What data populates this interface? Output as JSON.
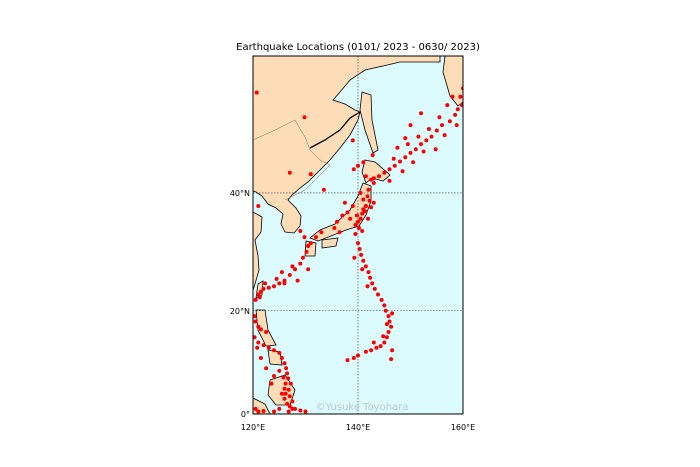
{
  "chart_data": {
    "type": "scatter",
    "title": "Earthquake Locations (0101/ 2023 - 0630/ 2023)",
    "projection": "mercator",
    "xlim": [
      120,
      160
    ],
    "ylim": [
      0,
      57
    ],
    "x_ticks": [
      120,
      140,
      160
    ],
    "x_tick_labels": [
      "120°E",
      "140°E",
      "160°E"
    ],
    "y_ticks": [
      0,
      20,
      40
    ],
    "y_tick_labels": [
      "0°",
      "20°N",
      "40°N"
    ],
    "grid": true,
    "watermark": "©Yusuke Toyohara",
    "colors": {
      "land": "#fddcb8",
      "ocean": "#dcfbff",
      "points": "#ff0000",
      "grid": "#333333"
    },
    "points_lonlat": [
      [
        159.5,
        53
      ],
      [
        159.8,
        52
      ],
      [
        159,
        51.5
      ],
      [
        158.5,
        50.8
      ],
      [
        157.5,
        50
      ],
      [
        156,
        49.5
      ],
      [
        155,
        48.8
      ],
      [
        154,
        48
      ],
      [
        153,
        47.5
      ],
      [
        152,
        47
      ],
      [
        151,
        46.3
      ],
      [
        150,
        45.8
      ],
      [
        149,
        45.2
      ],
      [
        148,
        44.6
      ],
      [
        147,
        44
      ],
      [
        146,
        43.5
      ],
      [
        145,
        43
      ],
      [
        144,
        42.5
      ],
      [
        143,
        42.2
      ],
      [
        155.5,
        50.5
      ],
      [
        153.5,
        49
      ],
      [
        151.5,
        48
      ],
      [
        149.5,
        47
      ],
      [
        147.5,
        46.5
      ],
      [
        146.8,
        45
      ],
      [
        152.5,
        46
      ],
      [
        157,
        52
      ],
      [
        158,
        53
      ],
      [
        160,
        54
      ],
      [
        150.5,
        44.5
      ],
      [
        148.5,
        43.2
      ],
      [
        146,
        41.8
      ],
      [
        154.8,
        46.3
      ],
      [
        156.5,
        48.2
      ],
      [
        158.8,
        49.5
      ],
      [
        152,
        51
      ],
      [
        150,
        49.5
      ],
      [
        149,
        47.8
      ],
      [
        141.5,
        42.5
      ],
      [
        142.5,
        42
      ],
      [
        143,
        41.5
      ],
      [
        142,
        40.5
      ],
      [
        141.8,
        39.5
      ],
      [
        142.2,
        38.8
      ],
      [
        141.5,
        38
      ],
      [
        141,
        37.5
      ],
      [
        140.8,
        36.8
      ],
      [
        140.5,
        36
      ],
      [
        140,
        35.5
      ],
      [
        139.5,
        35
      ],
      [
        140.2,
        34.5
      ],
      [
        141.3,
        37.2
      ],
      [
        142.5,
        37.8
      ],
      [
        143,
        38.5
      ],
      [
        141,
        39
      ],
      [
        140.5,
        40
      ],
      [
        139,
        38
      ],
      [
        138,
        37
      ],
      [
        137,
        36.5
      ],
      [
        136,
        35.5
      ],
      [
        135.5,
        34.5
      ],
      [
        133,
        33.8
      ],
      [
        132,
        33
      ],
      [
        131,
        32
      ],
      [
        130.5,
        31.5
      ],
      [
        138.5,
        36
      ],
      [
        139.8,
        36.5
      ],
      [
        141.9,
        36
      ],
      [
        140.8,
        34
      ],
      [
        139.5,
        33.5
      ],
      [
        136.5,
        33.8
      ],
      [
        129.8,
        33
      ],
      [
        130.2,
        30.5
      ],
      [
        139.2,
        43.5
      ],
      [
        141,
        44.5
      ],
      [
        142.8,
        45.5
      ],
      [
        140,
        32
      ],
      [
        140.3,
        31
      ],
      [
        140.6,
        30
      ],
      [
        141,
        29
      ],
      [
        141.5,
        28
      ],
      [
        142,
        27
      ],
      [
        142.3,
        26
      ],
      [
        142.7,
        25
      ],
      [
        143.2,
        24
      ],
      [
        143.8,
        23
      ],
      [
        144.5,
        22
      ],
      [
        145,
        21
      ],
      [
        145.3,
        20
      ],
      [
        145.8,
        19
      ],
      [
        146,
        18
      ],
      [
        146.3,
        17
      ],
      [
        145.8,
        16
      ],
      [
        145.5,
        15
      ],
      [
        145,
        14
      ],
      [
        144.3,
        13.3
      ],
      [
        143.5,
        13
      ],
      [
        142.5,
        12.5
      ],
      [
        141.5,
        12.2
      ],
      [
        140,
        11.5
      ],
      [
        146.5,
        12.5
      ],
      [
        146.3,
        10.8
      ],
      [
        138,
        10.6
      ],
      [
        139.2,
        11
      ],
      [
        145.5,
        17.5
      ],
      [
        146.5,
        19.5
      ],
      [
        144.8,
        15.2
      ],
      [
        143,
        14
      ],
      [
        140.8,
        27.5
      ],
      [
        139.3,
        29.5
      ],
      [
        141.8,
        24.5
      ],
      [
        129.5,
        29.5
      ],
      [
        129,
        28.5
      ],
      [
        128,
        27.5
      ],
      [
        127,
        26.5
      ],
      [
        126,
        25.5
      ],
      [
        125,
        25
      ],
      [
        124,
        24.5
      ],
      [
        123,
        24.2
      ],
      [
        122,
        24
      ],
      [
        121.5,
        23.5
      ],
      [
        121,
        23
      ],
      [
        121.3,
        22.5
      ],
      [
        120.5,
        22
      ],
      [
        125.5,
        27
      ],
      [
        127.5,
        28
      ],
      [
        122.3,
        25
      ],
      [
        124.5,
        25.8
      ],
      [
        126,
        25
      ],
      [
        128.5,
        25.5
      ],
      [
        130.5,
        27.5
      ],
      [
        120.5,
        18
      ],
      [
        121,
        17
      ],
      [
        121.5,
        16.5
      ],
      [
        120.3,
        15
      ],
      [
        121,
        14
      ],
      [
        122,
        13.5
      ],
      [
        123,
        13
      ],
      [
        124,
        12.5
      ],
      [
        125,
        12
      ],
      [
        125.5,
        11
      ],
      [
        126,
        10
      ],
      [
        126.3,
        9
      ],
      [
        126.5,
        8
      ],
      [
        126.7,
        7
      ],
      [
        126.2,
        6
      ],
      [
        126,
        5
      ],
      [
        125.5,
        4
      ],
      [
        126,
        3
      ],
      [
        126.5,
        2
      ],
      [
        127,
        1.5
      ],
      [
        127.5,
        1
      ],
      [
        125,
        1
      ],
      [
        124,
        0.5
      ],
      [
        122,
        0.6
      ],
      [
        121,
        0.5
      ],
      [
        120.5,
        1
      ],
      [
        123.5,
        6
      ],
      [
        124,
        7.5
      ],
      [
        125,
        8.5
      ],
      [
        127,
        3.5
      ],
      [
        126.8,
        4.8
      ],
      [
        127.5,
        2.5
      ],
      [
        128,
        1
      ],
      [
        129,
        0.7
      ],
      [
        122.5,
        9
      ],
      [
        121.5,
        11
      ],
      [
        120.8,
        13
      ],
      [
        122.5,
        16
      ],
      [
        120.3,
        19
      ],
      [
        127.2,
        6
      ],
      [
        125.8,
        7.2
      ],
      [
        126.2,
        4
      ],
      [
        126.8,
        0.5
      ],
      [
        130,
        0.5
      ],
      [
        120.7,
        53.5
      ],
      [
        129.8,
        50.5
      ],
      [
        131,
        42.8
      ],
      [
        133.5,
        40.5
      ],
      [
        127,
        43
      ],
      [
        139,
        47.5
      ],
      [
        140,
        44
      ],
      [
        137.5,
        38.5
      ],
      [
        129,
        34
      ],
      [
        121,
        38
      ]
    ]
  }
}
